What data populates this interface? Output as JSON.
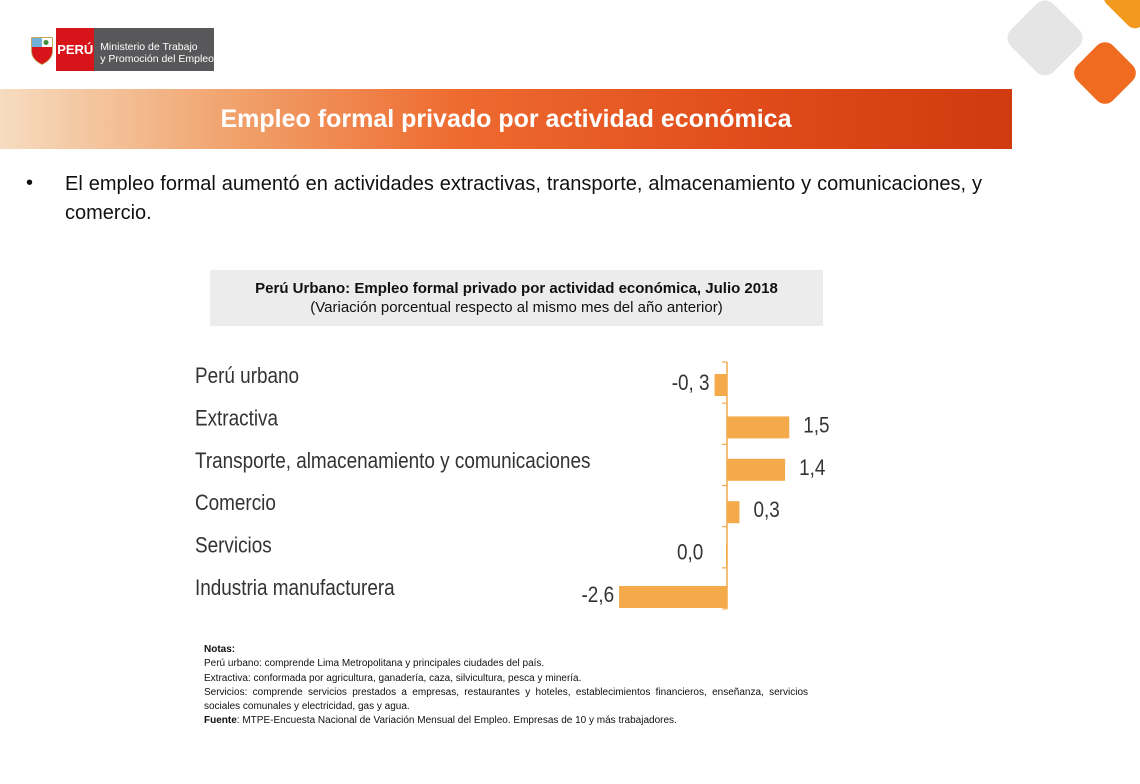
{
  "header": {
    "logo_country": "PERÚ",
    "logo_ministry_line1": "Ministerio de Trabajo",
    "logo_ministry_line2": "y Promoción del Empleo"
  },
  "banner": {
    "title": "Empleo formal privado por actividad económica"
  },
  "bullet": {
    "text": "El empleo formal aumentó en actividades extractivas, transporte, almacenamiento y comunicaciones, y comercio."
  },
  "chart_header": {
    "title": "Perú Urbano: Empleo formal privado por actividad económica, Julio 2018",
    "subtitle": "(Variación porcentual respecto al mismo mes del año anterior)"
  },
  "chart_data": {
    "type": "bar",
    "orientation": "horizontal",
    "categories": [
      "Perú urbano",
      "Extractiva",
      "Transporte, almacenamiento y comunicaciones",
      "Comercio",
      "Servicios",
      "Industria manufacturera"
    ],
    "values": [
      -0.3,
      1.5,
      1.4,
      0.3,
      0.0,
      -2.6
    ],
    "value_labels": [
      "-0, 3",
      "1,5",
      "1,4",
      "0,3",
      "0,0",
      "-2,6"
    ],
    "bar_color": "#f4a94a",
    "axis_color": "#f4a94a",
    "grid": false,
    "legend": "none"
  },
  "notes": {
    "heading": "Notas:",
    "lines": [
      "Perú urbano: comprende Lima Metropolitana y principales ciudades del país.",
      "Extractiva: conformada por agricultura, ganadería, caza, silvicultura, pesca y minería.",
      "Servicios: comprende  servicios prestados a empresas, restaurantes y hoteles, establecimientos financieros, enseñanza, servicios sociales comunales y electricidad, gas y agua."
    ],
    "source_label": "Fuente",
    "source_text": ": MTPE-Encuesta Nacional de Variación Mensual del Empleo. Empresas de 10 y más trabajadores."
  },
  "colors": {
    "peru_red": "#d7141a",
    "ministry_gray": "#58585a",
    "banner_orange": "#e04b1a",
    "deco_gray": "#e5e5e5",
    "deco_orange": "#f06a1f"
  }
}
